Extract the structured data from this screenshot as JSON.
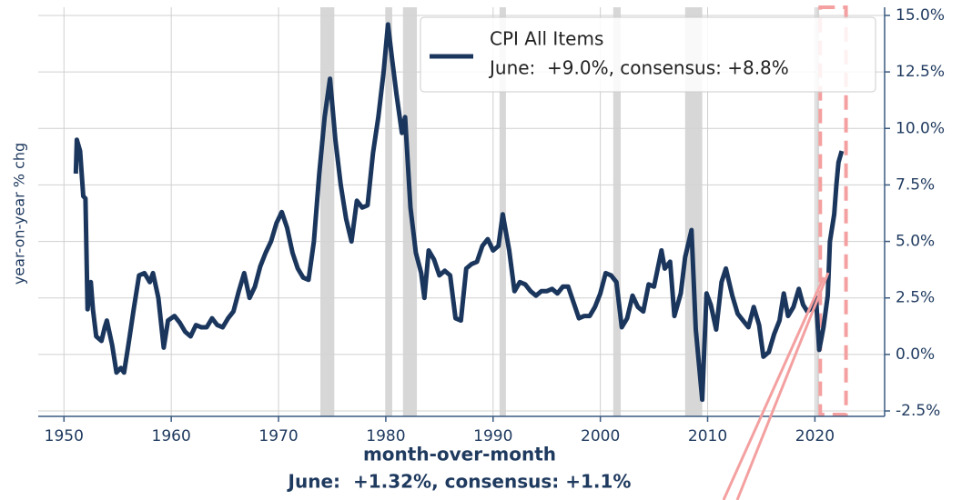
{
  "chart_data": {
    "type": "line",
    "y_axis_label": "year-on-year % chg",
    "legend_detail": "June:  +9.0%, consensus: +8.8%",
    "annotation_title": "month-over-month",
    "annotation_detail": "June:  +1.32%, consensus: +1.1%",
    "xlim": [
      1947.6,
      2026.5
    ],
    "ylim": [
      -2.74,
      15.36
    ],
    "xticks": [
      1950,
      1960,
      1970,
      1980,
      1990,
      2000,
      2010,
      2020
    ],
    "yticks": [
      {
        "value": -2.5,
        "label": "-2.5%"
      },
      {
        "value": 0,
        "label": "0.0%"
      },
      {
        "value": 2.5,
        "label": "2.5%"
      },
      {
        "value": 5,
        "label": "5.0%"
      },
      {
        "value": 7.5,
        "label": "7.5%"
      },
      {
        "value": 10,
        "label": "10.0%"
      },
      {
        "value": 12.5,
        "label": "12.5%"
      },
      {
        "value": 15,
        "label": "15.0%"
      }
    ],
    "y_axis_side": "right",
    "grid": true,
    "legend_position": "upper right",
    "recessions": [
      [
        1973.9,
        1975.2
      ],
      [
        1980.0,
        1980.6
      ],
      [
        1981.6,
        1982.9
      ],
      [
        1990.6,
        1991.2
      ],
      [
        2001.2,
        2001.9
      ],
      [
        2007.9,
        2009.5
      ],
      [
        2020.1,
        2020.4
      ]
    ],
    "recession_color": "#d3d3d3",
    "highlight": [
      2020.5,
      2022.9
    ],
    "highlight_color": "#f4a0a0",
    "x": [
      1951.1,
      1951.2,
      1951.5,
      1951.8,
      1952.0,
      1952.2,
      1952.5,
      1952.7,
      1953.0,
      1953.5,
      1953.8,
      1954.0,
      1954.5,
      1954.9,
      1955.3,
      1955.6,
      1956.0,
      1956.5,
      1957.0,
      1957.5,
      1958.0,
      1958.3,
      1958.8,
      1959.3,
      1959.7,
      1960.3,
      1960.8,
      1961.3,
      1961.8,
      1962.3,
      1962.8,
      1963.3,
      1963.8,
      1964.3,
      1964.8,
      1965.3,
      1965.8,
      1966.3,
      1966.8,
      1967.3,
      1967.8,
      1968.3,
      1968.8,
      1969.3,
      1969.8,
      1970.3,
      1970.8,
      1971.3,
      1971.8,
      1972.3,
      1972.8,
      1973.3,
      1973.8,
      1974.3,
      1974.8,
      1975.3,
      1975.8,
      1976.3,
      1976.8,
      1977.3,
      1977.8,
      1978.3,
      1978.8,
      1979.3,
      1979.8,
      1980.2,
      1980.6,
      1981.0,
      1981.5,
      1981.8,
      1982.3,
      1982.8,
      1983.3,
      1983.6,
      1984.0,
      1984.5,
      1985.0,
      1985.5,
      1986.0,
      1986.5,
      1987.0,
      1987.5,
      1988.0,
      1988.5,
      1989.0,
      1989.5,
      1990.0,
      1990.5,
      1990.9,
      1991.5,
      1992.0,
      1992.5,
      1993.0,
      1993.5,
      1994.0,
      1994.5,
      1995.0,
      1995.5,
      1996.0,
      1996.5,
      1997.0,
      1997.5,
      1998.0,
      1998.5,
      1999.0,
      1999.5,
      2000.0,
      2000.5,
      2001.0,
      2001.5,
      2002.0,
      2002.5,
      2003.0,
      2003.5,
      2004.0,
      2004.5,
      2005.0,
      2005.7,
      2006.0,
      2006.5,
      2006.9,
      2007.5,
      2007.9,
      2008.5,
      2008.9,
      2009.5,
      2009.9,
      2010.3,
      2010.8,
      2011.3,
      2011.7,
      2012.3,
      2012.8,
      2013.3,
      2013.8,
      2014.3,
      2014.8,
      2015.2,
      2015.7,
      2016.2,
      2016.7,
      2017.1,
      2017.5,
      2018.0,
      2018.5,
      2018.9,
      2019.3,
      2019.8,
      2020.1,
      2020.4,
      2020.8,
      2021.2,
      2021.4,
      2021.8,
      2022.0,
      2022.2,
      2022.5
    ],
    "series": [
      {
        "name": "CPI All Items",
        "color": "#1b365d",
        "values": [
          8.0,
          9.5,
          9.0,
          7.0,
          6.9,
          2.0,
          3.2,
          2.0,
          0.8,
          0.6,
          1.2,
          1.5,
          0.4,
          -0.8,
          -0.6,
          -0.8,
          0.4,
          2.0,
          3.5,
          3.6,
          3.2,
          3.6,
          2.5,
          0.3,
          1.5,
          1.7,
          1.4,
          1.0,
          0.8,
          1.3,
          1.2,
          1.2,
          1.6,
          1.3,
          1.2,
          1.6,
          1.9,
          2.8,
          3.6,
          2.5,
          3.0,
          3.9,
          4.5,
          5.0,
          5.8,
          6.3,
          5.6,
          4.5,
          3.8,
          3.4,
          3.3,
          5.0,
          8.0,
          10.5,
          12.2,
          9.5,
          7.5,
          6.0,
          5.0,
          6.8,
          6.5,
          6.6,
          8.9,
          10.5,
          12.5,
          14.6,
          13.0,
          11.5,
          9.8,
          10.5,
          6.5,
          4.5,
          3.6,
          2.5,
          4.6,
          4.2,
          3.5,
          3.7,
          3.5,
          1.6,
          1.5,
          3.8,
          4.0,
          4.1,
          4.8,
          5.1,
          4.6,
          4.8,
          6.2,
          4.6,
          2.8,
          3.2,
          3.1,
          2.8,
          2.6,
          2.8,
          2.8,
          2.9,
          2.7,
          3.0,
          3.0,
          2.3,
          1.6,
          1.7,
          1.7,
          2.1,
          2.7,
          3.6,
          3.5,
          3.2,
          1.2,
          1.6,
          2.6,
          2.1,
          1.9,
          3.1,
          3.0,
          4.6,
          3.8,
          4.1,
          1.7,
          2.7,
          4.3,
          5.5,
          1.1,
          -2.0,
          2.7,
          2.2,
          1.1,
          3.2,
          3.8,
          2.6,
          1.8,
          1.5,
          1.2,
          2.1,
          1.3,
          -0.1,
          0.1,
          0.9,
          1.5,
          2.7,
          1.7,
          2.1,
          2.9,
          2.2,
          1.9,
          2.1,
          2.5,
          0.2,
          1.2,
          2.6,
          5.0,
          6.2,
          7.5,
          8.5,
          9.0
        ]
      }
    ]
  }
}
